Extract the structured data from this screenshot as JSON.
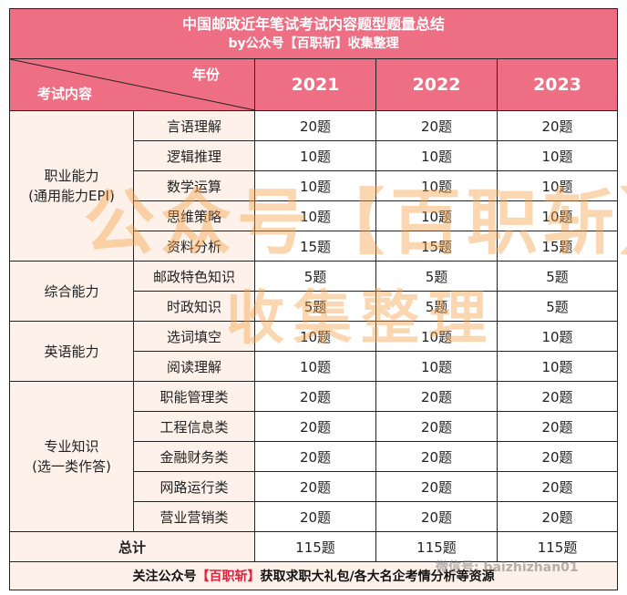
{
  "title": {
    "line1": "中国邮政近年笔试考试内容题型题量总结",
    "line2": "by公众号【百职斩】收集整理"
  },
  "header": {
    "year_label": "年份",
    "content_label": "考试内容",
    "years": [
      "2021",
      "2022",
      "2023"
    ]
  },
  "groups": [
    {
      "category": "职业能力\n(通用能力EPI)",
      "rows": [
        {
          "sub": "言语理解",
          "values": [
            "20题",
            "20题",
            "20题"
          ]
        },
        {
          "sub": "逻辑推理",
          "values": [
            "10题",
            "10题",
            "10题"
          ]
        },
        {
          "sub": "数学运算",
          "values": [
            "10题",
            "10题",
            "10题"
          ]
        },
        {
          "sub": "思维策略",
          "values": [
            "10题",
            "10题",
            "10题"
          ]
        },
        {
          "sub": "资料分析",
          "values": [
            "15题",
            "15题",
            "15题"
          ]
        }
      ]
    },
    {
      "category": "综合能力",
      "rows": [
        {
          "sub": "邮政特色知识",
          "values": [
            "5题",
            "5题",
            "5题"
          ]
        },
        {
          "sub": "时政知识",
          "values": [
            "5题",
            "5题",
            "5题"
          ]
        }
      ]
    },
    {
      "category": "英语能力",
      "rows": [
        {
          "sub": "选词填空",
          "values": [
            "10题",
            "10题",
            "10题"
          ]
        },
        {
          "sub": "阅读理解",
          "values": [
            "10题",
            "10题",
            "10题"
          ]
        }
      ]
    },
    {
      "category": "专业知识\n(选一类作答)",
      "rows": [
        {
          "sub": "职能管理类",
          "values": [
            "20题",
            "20题",
            "20题"
          ]
        },
        {
          "sub": "工程信息类",
          "values": [
            "20题",
            "20题",
            "20题"
          ]
        },
        {
          "sub": "金融财务类",
          "values": [
            "20题",
            "20题",
            "20题"
          ]
        },
        {
          "sub": "网路运行类",
          "values": [
            "20题",
            "20题",
            "20题"
          ]
        },
        {
          "sub": "营业营销类",
          "values": [
            "20题",
            "20题",
            "20题"
          ]
        }
      ]
    }
  ],
  "total": {
    "label": "总计",
    "values": [
      "115题",
      "115题",
      "115题"
    ]
  },
  "footer": {
    "pre": "关注公众号",
    "highlight": "【百职斩】",
    "post": "获取求职大礼包/各大名企考情分析等资源"
  },
  "watermarks": {
    "big1": "公众号【百职斩】",
    "big2": "收集整理",
    "small": "微信号: baizhizhan01"
  },
  "colors": {
    "header_bg": "#ee6e83",
    "cell_bg": "#fdf1e9",
    "highlight": "#e0203a"
  }
}
